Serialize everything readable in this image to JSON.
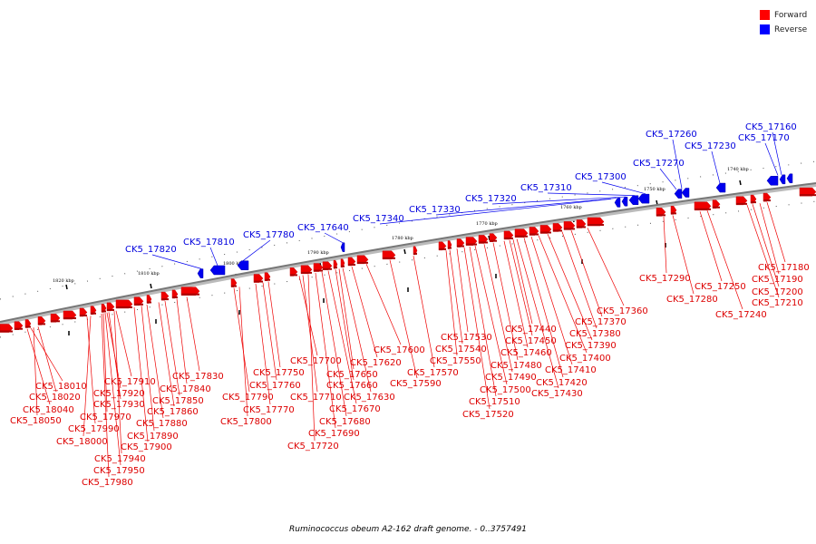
{
  "legend": {
    "items": [
      {
        "label": "Forward",
        "color": "#ff0000"
      },
      {
        "label": "Reverse",
        "color": "#0000ff"
      }
    ]
  },
  "caption": "Ruminococcus obeum A2-162 draft genome. - 0..3757491",
  "ticks": [
    "1820 kbp",
    "1810 kbp",
    "1800 kbp",
    "1790 kbp",
    "1780 kbp",
    "1770 kbp",
    "1760 kbp",
    "1750 kbp",
    "1740 kbp"
  ],
  "forward_labels": [
    "CK5_18010",
    "CK5_18020",
    "CK5_18040",
    "CK5_18050",
    "CK5_17910",
    "CK5_17920",
    "CK5_17930",
    "CK5_17970",
    "CK5_17990",
    "CK5_18000",
    "CK5_17940",
    "CK5_17950",
    "CK5_17980",
    "CK5_17900",
    "CK5_17890",
    "CK5_17880",
    "CK5_17860",
    "CK5_17850",
    "CK5_17840",
    "CK5_17830",
    "CK5_17790",
    "CK5_17800",
    "CK5_17770",
    "CK5_17760",
    "CK5_17750",
    "CK5_17700",
    "CK5_17710",
    "CK5_17720",
    "CK5_17690",
    "CK5_17680",
    "CK5_17670",
    "CK5_17660",
    "CK5_17650",
    "CK5_17630",
    "CK5_17620",
    "CK5_17600",
    "CK5_17590",
    "CK5_17570",
    "CK5_17550",
    "CK5_17540",
    "CK5_17530",
    "CK5_17520",
    "CK5_17510",
    "CK5_17500",
    "CK5_17490",
    "CK5_17480",
    "CK5_17460",
    "CK5_17450",
    "CK5_17440",
    "CK5_17430",
    "CK5_17420",
    "CK5_17410",
    "CK5_17400",
    "CK5_17390",
    "CK5_17380",
    "CK5_17370",
    "CK5_17360",
    "CK5_17290",
    "CK5_17280",
    "CK5_17250",
    "CK5_17240",
    "CK5_17210",
    "CK5_17200",
    "CK5_17190",
    "CK5_17180"
  ],
  "reverse_labels": [
    "CK5_17820",
    "CK5_17810",
    "CK5_17780",
    "CK5_17640",
    "CK5_17340",
    "CK5_17330",
    "CK5_17320",
    "CK5_17310",
    "CK5_17300",
    "CK5_17270",
    "CK5_17260",
    "CK5_17230",
    "CK5_17170",
    "CK5_17160"
  ]
}
